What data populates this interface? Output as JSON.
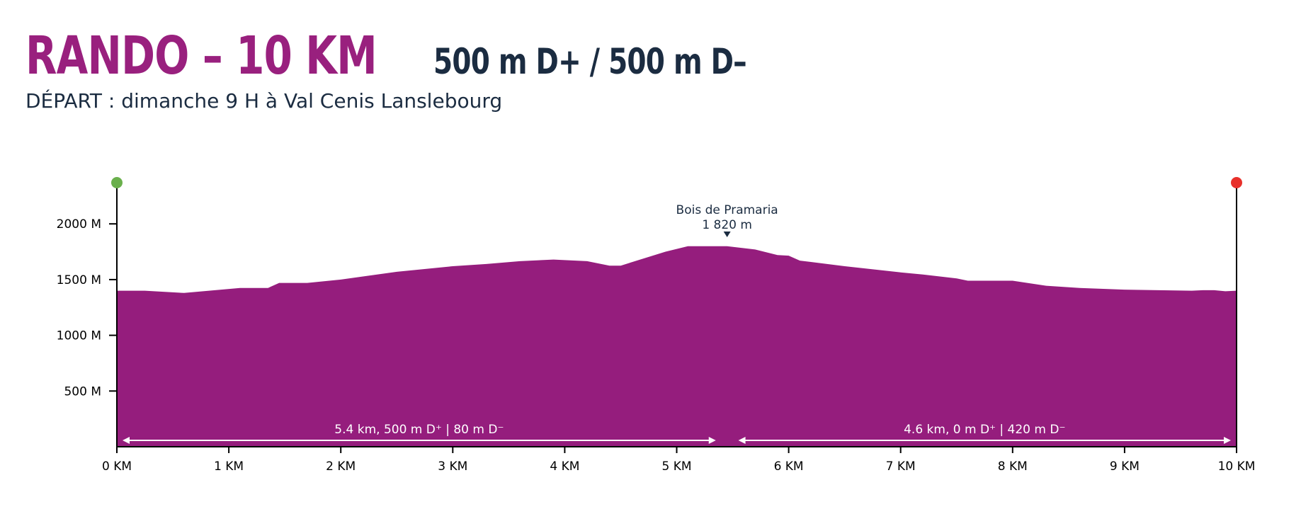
{
  "header": {
    "title": "RANDO – 10 KM",
    "elevation": "500 m D+ / 500 m D–",
    "subtitle": "DÉPART : dimanche 9 H à Val Cenis Lanslebourg"
  },
  "colors": {
    "profile_fill": "#951d7d",
    "title": "#99207e",
    "text_dark": "#1b2c41",
    "start_marker": "#6ab04c",
    "end_marker": "#e8302a"
  },
  "chart_data": {
    "type": "area",
    "xlim": [
      0,
      10
    ],
    "ylim": [
      0,
      2500
    ],
    "x_ticks": [
      0,
      1,
      2,
      3,
      4,
      5,
      6,
      7,
      8,
      9,
      10
    ],
    "x_tick_labels": [
      "0 KM",
      "1 KM",
      "2 KM",
      "3 KM",
      "4 KM",
      "5 KM",
      "6 KM",
      "7 KM",
      "8 KM",
      "9 KM",
      "10 KM"
    ],
    "y_ticks": [
      500,
      1000,
      1500,
      2000
    ],
    "y_tick_labels": [
      "500 M",
      "1000 M",
      "1500 M",
      "2000 M"
    ],
    "x": [
      0,
      0.25,
      0.6,
      1.1,
      1.35,
      1.45,
      1.7,
      2.0,
      2.5,
      3.0,
      3.3,
      3.6,
      3.9,
      4.2,
      4.4,
      4.5,
      4.9,
      5.1,
      5.45,
      5.7,
      5.9,
      6.0,
      6.1,
      6.5,
      7.0,
      7.2,
      7.5,
      7.6,
      8.0,
      8.3,
      8.6,
      9.0,
      9.3,
      9.6,
      9.7,
      9.8,
      9.9,
      10
    ],
    "y": [
      1400,
      1400,
      1380,
      1425,
      1425,
      1470,
      1470,
      1500,
      1570,
      1620,
      1640,
      1665,
      1680,
      1665,
      1625,
      1625,
      1750,
      1800,
      1800,
      1770,
      1720,
      1715,
      1670,
      1620,
      1565,
      1545,
      1510,
      1490,
      1490,
      1445,
      1425,
      1410,
      1405,
      1400,
      1405,
      1405,
      1395,
      1400
    ],
    "annotation": {
      "label": "Bois de Pramaria",
      "value_label": "1 820 m",
      "x": 5.45,
      "y": 1820
    },
    "segments": [
      {
        "from": 0,
        "to": 5.4,
        "label": "5.4 km, 500 m D⁺ | 80 m D⁻"
      },
      {
        "from": 5.5,
        "to": 10,
        "label": "4.6 km, 0 m D⁺ | 420 m D⁻"
      }
    ]
  }
}
